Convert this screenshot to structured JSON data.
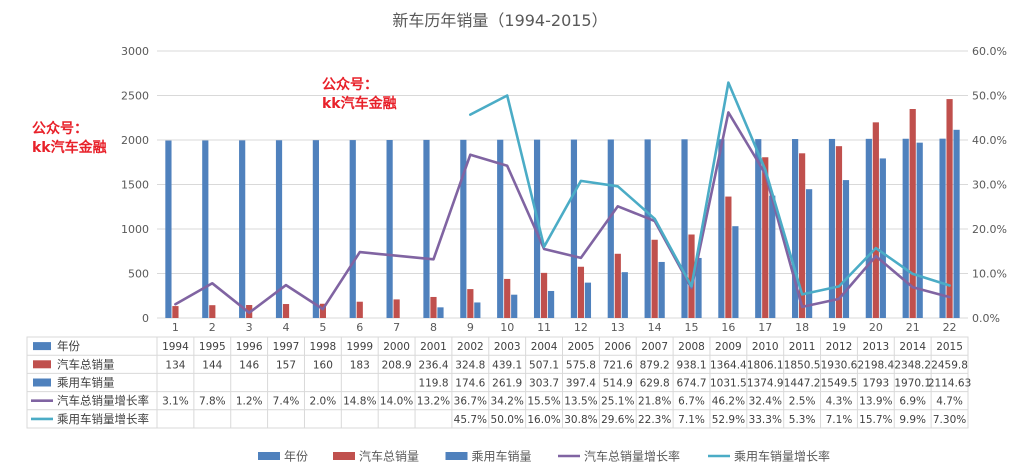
{
  "watermarks": [
    {
      "line1": "公众号：",
      "line2": "kk汽车金融"
    },
    {
      "line1": "公众号：",
      "line2": "kk汽车金融"
    }
  ],
  "colors": {
    "year": "#4f81bd",
    "total_sales": "#c0504d",
    "passenger_sales": "#4f81bd",
    "total_growth": "#8064a2",
    "passenger_growth": "#4bacc6",
    "grid": "#d9d9d9",
    "text": "#595959",
    "watermark": "#e8212a"
  },
  "chart_data": {
    "type": "bar",
    "title": "新车历年销量（1994-2015）",
    "categories": [
      "1",
      "2",
      "3",
      "4",
      "5",
      "6",
      "7",
      "8",
      "9",
      "10",
      "11",
      "12",
      "13",
      "14",
      "15",
      "16",
      "17",
      "18",
      "19",
      "20",
      "21",
      "22"
    ],
    "y_left_ticks": [
      "0",
      "500",
      "1000",
      "1500",
      "2000",
      "2500",
      "3000"
    ],
    "ylim_left": [
      0,
      3000
    ],
    "y_right_ticks": [
      "0.0%",
      "10.0%",
      "20.0%",
      "30.0%",
      "40.0%",
      "50.0%",
      "60.0%"
    ],
    "ylim_right": [
      0,
      0.6
    ],
    "series": [
      {
        "name": "年份",
        "kind": "bar",
        "axis": "left",
        "color": "#4f81bd",
        "values": [
          1994,
          1995,
          1996,
          1997,
          1998,
          1999,
          2000,
          2001,
          2002,
          2003,
          2004,
          2005,
          2006,
          2007,
          2008,
          2009,
          2010,
          2011,
          2012,
          2013,
          2014,
          2015
        ],
        "labels": [
          "1994",
          "1995",
          "1996",
          "1997",
          "1998",
          "1999",
          "2000",
          "2001",
          "2002",
          "2003",
          "2004",
          "2005",
          "2006",
          "2007",
          "2008",
          "2009",
          "2010",
          "2011",
          "2012",
          "2013",
          "2014",
          "2015"
        ]
      },
      {
        "name": "汽车总销量",
        "kind": "bar",
        "axis": "left",
        "color": "#c0504d",
        "values": [
          134,
          144,
          146,
          157,
          160,
          183,
          208.9,
          236.4,
          324.8,
          439.1,
          507.1,
          575.8,
          721.6,
          879.2,
          938.1,
          1364.4,
          1806.1,
          1850.5,
          1930.6,
          2198.4,
          2348.2,
          2459.8
        ],
        "labels": [
          "134",
          "144",
          "146",
          "157",
          "160",
          "183",
          "208.9",
          "236.4",
          "324.8",
          "439.1",
          "507.1",
          "575.8",
          "721.6",
          "879.2",
          "938.1",
          "1364.4",
          "1806.1",
          "1850.5",
          "1930.6",
          "2198.4",
          "2348.2",
          "2459.8"
        ]
      },
      {
        "name": "乘用车销量",
        "kind": "bar",
        "axis": "left",
        "color": "#4f81bd",
        "values": [
          null,
          null,
          null,
          null,
          null,
          null,
          null,
          119.8,
          174.6,
          261.9,
          303.7,
          397.4,
          514.9,
          629.8,
          674.7,
          1031.5,
          1374.9,
          1447.2,
          1549.5,
          1793,
          1970.1,
          2114.63
        ],
        "labels": [
          "",
          "",
          "",
          "",
          "",
          "",
          "",
          "119.8",
          "174.6",
          "261.9",
          "303.7",
          "397.4",
          "514.9",
          "629.8",
          "674.7",
          "1031.5",
          "1374.9",
          "1447.2",
          "1549.5",
          "1793",
          "1970.1",
          "2114.63"
        ]
      },
      {
        "name": "汽车总销量增长率",
        "kind": "line",
        "axis": "right",
        "color": "#8064a2",
        "values": [
          0.031,
          0.078,
          0.012,
          0.074,
          0.02,
          0.148,
          0.14,
          0.132,
          0.367,
          0.342,
          0.155,
          0.135,
          0.251,
          0.218,
          0.067,
          0.462,
          0.324,
          0.025,
          0.043,
          0.139,
          0.069,
          0.047
        ],
        "labels": [
          "3.1%",
          "7.8%",
          "1.2%",
          "7.4%",
          "2.0%",
          "14.8%",
          "14.0%",
          "13.2%",
          "36.7%",
          "34.2%",
          "15.5%",
          "13.5%",
          "25.1%",
          "21.8%",
          "6.7%",
          "46.2%",
          "32.4%",
          "2.5%",
          "4.3%",
          "13.9%",
          "6.9%",
          "4.7%"
        ]
      },
      {
        "name": "乘用车销量增长率",
        "kind": "line",
        "axis": "right",
        "color": "#4bacc6",
        "values": [
          null,
          null,
          null,
          null,
          null,
          null,
          null,
          null,
          0.457,
          0.5,
          0.16,
          0.308,
          0.296,
          0.223,
          0.071,
          0.529,
          0.333,
          0.053,
          0.071,
          0.157,
          0.099,
          0.073
        ],
        "labels": [
          "",
          "",
          "",
          "",
          "",
          "",
          "",
          "",
          "45.7%",
          "50.0%",
          "16.0%",
          "30.8%",
          "29.6%",
          "22.3%",
          "7.1%",
          "52.9%",
          "33.3%",
          "5.3%",
          "7.1%",
          "15.7%",
          "9.9%",
          "7.30%"
        ]
      }
    ]
  }
}
